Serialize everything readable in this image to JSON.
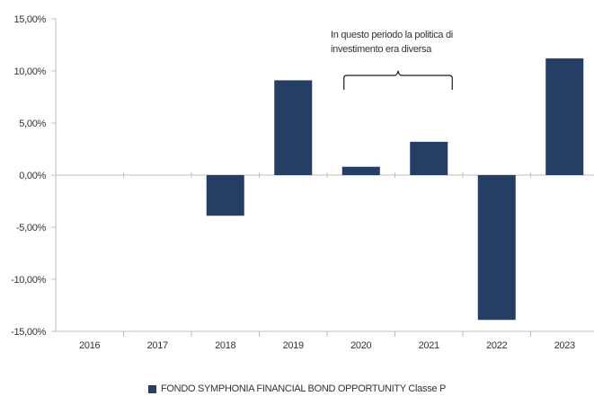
{
  "chart_data": {
    "type": "bar",
    "categories": [
      "2016",
      "2017",
      "2018",
      "2019",
      "2020",
      "2021",
      "2022",
      "2023"
    ],
    "series": [
      {
        "name": "FONDO SYMPHONIA FINANCIAL BOND OPPORTUNITY Classe P",
        "values": [
          null,
          null,
          -3.9,
          9.1,
          0.8,
          3.2,
          -13.9,
          11.2
        ]
      }
    ],
    "y_ticks": [
      "15,00%",
      "10,00%",
      "5,00%",
      "0,00%",
      "-5,00%",
      "-10,00%",
      "-15,00%"
    ],
    "y_tick_values": [
      15,
      10,
      5,
      0,
      -5,
      -10,
      -15
    ],
    "ylim": [
      -15,
      15
    ],
    "grid": false,
    "legend_position": "bottom",
    "annotation": {
      "lines": [
        "In questo periodo la politica di",
        "investimento era diversa"
      ],
      "from_category": "2020",
      "to_category": "2021"
    },
    "colors": {
      "bar": "#243e64",
      "axis": "#bfbfbf",
      "text": "#333333"
    }
  }
}
